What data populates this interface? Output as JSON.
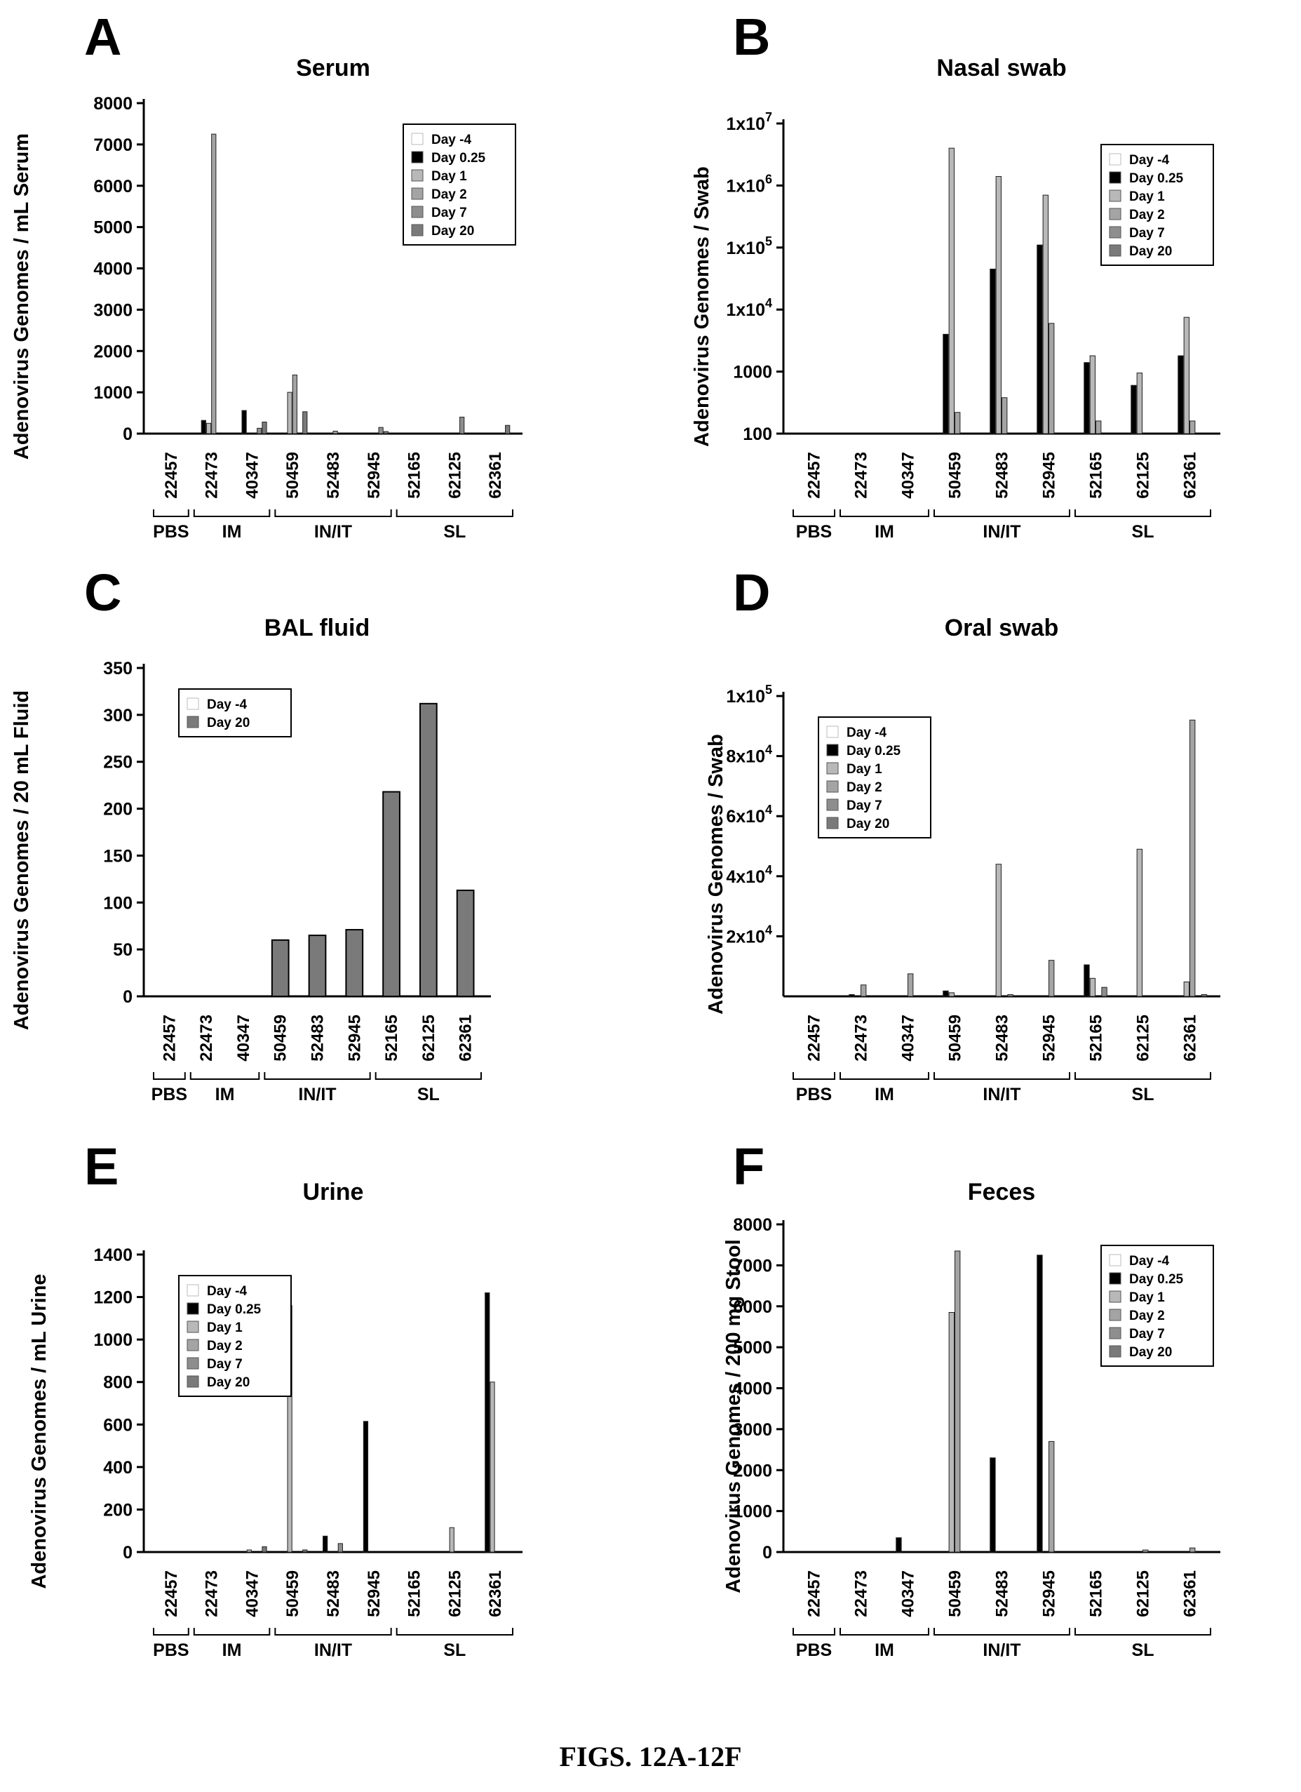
{
  "figure_caption": "FIGS. 12A-12F",
  "colors": {
    "Day -4": "#ffffff",
    "Day 0.25": "#000000",
    "Day 1": "#b8b8b8",
    "Day 2": "#a4a4a4",
    "Day 7": "#8e8e8e",
    "Day 20": "#7a7a7a"
  },
  "chart_data": [
    {
      "panel": "A",
      "type": "bar",
      "title": "Serum",
      "ylabel": "Adenovirus Genomes / mL Serum",
      "yscale": "linear",
      "ylim": [
        0,
        8000
      ],
      "yticks": [
        0,
        1000,
        2000,
        3000,
        4000,
        5000,
        6000,
        7000,
        8000
      ],
      "ytick_labels": [
        "0",
        "1000",
        "2000",
        "3000",
        "4000",
        "5000",
        "6000",
        "7000",
        "8000"
      ],
      "legend": "top-right",
      "categories": [
        "22457",
        "22473",
        "40347",
        "50459",
        "52483",
        "52945",
        "52165",
        "62125",
        "62361"
      ],
      "groups": [
        {
          "label": "PBS",
          "span": [
            0,
            0
          ]
        },
        {
          "label": "IM",
          "span": [
            1,
            2
          ]
        },
        {
          "label": "IN/IT",
          "span": [
            3,
            5
          ]
        },
        {
          "label": "SL",
          "span": [
            6,
            8
          ]
        }
      ],
      "series": [
        {
          "name": "Day -4",
          "values": [
            0,
            0,
            0,
            0,
            0,
            0,
            0,
            0,
            0
          ]
        },
        {
          "name": "Day 0.25",
          "values": [
            0,
            320,
            560,
            0,
            0,
            0,
            0,
            0,
            0
          ]
        },
        {
          "name": "Day 1",
          "values": [
            0,
            250,
            0,
            1000,
            0,
            0,
            0,
            0,
            0
          ]
        },
        {
          "name": "Day 2",
          "values": [
            0,
            7250,
            0,
            1420,
            60,
            0,
            0,
            0,
            0
          ]
        },
        {
          "name": "Day 7",
          "values": [
            0,
            0,
            130,
            0,
            0,
            150,
            0,
            400,
            0
          ]
        },
        {
          "name": "Day 20",
          "values": [
            0,
            0,
            280,
            530,
            0,
            50,
            0,
            0,
            200
          ]
        }
      ]
    },
    {
      "panel": "B",
      "type": "bar",
      "title": "Nasal swab",
      "ylabel": "Adenovirus Genomes / Swab",
      "yscale": "log",
      "ylim": [
        100,
        10000000
      ],
      "yticks": [
        100,
        1000,
        10000,
        100000,
        1000000,
        10000000
      ],
      "ytick_labels": [
        {
          "base": "100"
        },
        {
          "base": "1000"
        },
        {
          "base": "1x10",
          "exp": "4"
        },
        {
          "base": "1x10",
          "exp": "5"
        },
        {
          "base": "1x10",
          "exp": "6"
        },
        {
          "base": "1x10",
          "exp": "7"
        }
      ],
      "legend": "top-right",
      "categories": [
        "22457",
        "22473",
        "40347",
        "50459",
        "52483",
        "52945",
        "52165",
        "62125",
        "62361"
      ],
      "groups": [
        {
          "label": "PBS",
          "span": [
            0,
            0
          ]
        },
        {
          "label": "IM",
          "span": [
            1,
            2
          ]
        },
        {
          "label": "IN/IT",
          "span": [
            3,
            5
          ]
        },
        {
          "label": "SL",
          "span": [
            6,
            8
          ]
        }
      ],
      "series": [
        {
          "name": "Day -4",
          "values": [
            100,
            100,
            100,
            100,
            100,
            100,
            100,
            100,
            100
          ]
        },
        {
          "name": "Day 0.25",
          "values": [
            100,
            100,
            100,
            4000,
            45000,
            110000,
            1400,
            600,
            1800
          ]
        },
        {
          "name": "Day 1",
          "values": [
            100,
            100,
            100,
            4000000,
            1400000,
            700000,
            1800,
            950,
            7500
          ]
        },
        {
          "name": "Day 2",
          "values": [
            100,
            100,
            100,
            220,
            380,
            6000,
            160,
            100,
            160
          ]
        },
        {
          "name": "Day 7",
          "values": [
            100,
            100,
            100,
            100,
            100,
            100,
            100,
            100,
            100
          ]
        },
        {
          "name": "Day 20",
          "values": [
            100,
            100,
            100,
            100,
            100,
            100,
            100,
            100,
            100
          ]
        }
      ]
    },
    {
      "panel": "C",
      "type": "bar",
      "title": "BAL fluid",
      "ylabel": "Adenovirus Genomes / 20 mL Fluid",
      "yscale": "linear",
      "ylim": [
        0,
        350
      ],
      "yticks": [
        0,
        50,
        100,
        150,
        200,
        250,
        300,
        350
      ],
      "ytick_labels": [
        "0",
        "50",
        "100",
        "150",
        "200",
        "250",
        "300",
        "350"
      ],
      "legend": "top-left",
      "categories": [
        "22457",
        "22473",
        "40347",
        "50459",
        "52483",
        "52945",
        "52165",
        "62125",
        "62361"
      ],
      "groups": [
        {
          "label": "PBS",
          "span": [
            0,
            0
          ]
        },
        {
          "label": "IM",
          "span": [
            1,
            2
          ]
        },
        {
          "label": "IN/IT",
          "span": [
            3,
            5
          ]
        },
        {
          "label": "SL",
          "span": [
            6,
            8
          ]
        }
      ],
      "series": [
        {
          "name": "Day -4",
          "values": [
            0,
            0,
            0,
            0,
            0,
            0,
            0,
            0,
            0
          ]
        },
        {
          "name": "Day 20",
          "values": [
            0,
            0,
            0,
            60,
            65,
            71,
            218,
            312,
            113
          ]
        }
      ]
    },
    {
      "panel": "D",
      "type": "bar",
      "title": "Oral swab",
      "ylabel": "Adenovirus Genomes / Swab",
      "yscale": "linear",
      "ylim": [
        0,
        100000
      ],
      "yticks": [
        20000,
        40000,
        60000,
        80000,
        100000
      ],
      "ytick_labels": [
        {
          "base": "2x10",
          "exp": "4"
        },
        {
          "base": "4x10",
          "exp": "4"
        },
        {
          "base": "6x10",
          "exp": "4"
        },
        {
          "base": "8x10",
          "exp": "4"
        },
        {
          "base": "1x10",
          "exp": "5"
        }
      ],
      "legend": "top-left",
      "categories": [
        "22457",
        "22473",
        "40347",
        "50459",
        "52483",
        "52945",
        "52165",
        "62125",
        "62361"
      ],
      "groups": [
        {
          "label": "PBS",
          "span": [
            0,
            0
          ]
        },
        {
          "label": "IM",
          "span": [
            1,
            2
          ]
        },
        {
          "label": "IN/IT",
          "span": [
            3,
            5
          ]
        },
        {
          "label": "SL",
          "span": [
            6,
            8
          ]
        }
      ],
      "series": [
        {
          "name": "Day -4",
          "values": [
            0,
            0,
            0,
            0,
            0,
            0,
            0,
            0,
            0
          ]
        },
        {
          "name": "Day 0.25",
          "values": [
            0,
            600,
            0,
            1800,
            0,
            0,
            10500,
            0,
            0
          ]
        },
        {
          "name": "Day 1",
          "values": [
            0,
            0,
            0,
            1200,
            44000,
            0,
            6000,
            49000,
            4800
          ]
        },
        {
          "name": "Day 2",
          "values": [
            0,
            3800,
            7500,
            0,
            0,
            12000,
            0,
            0,
            92000
          ]
        },
        {
          "name": "Day 7",
          "values": [
            0,
            0,
            0,
            0,
            600,
            0,
            3000,
            0,
            0
          ]
        },
        {
          "name": "Day 20",
          "values": [
            0,
            0,
            0,
            0,
            0,
            0,
            0,
            0,
            600
          ]
        }
      ]
    },
    {
      "panel": "E",
      "type": "bar",
      "title": "Urine",
      "ylabel": "Adenovirus Genomes / mL Urine",
      "yscale": "linear",
      "ylim": [
        0,
        1400
      ],
      "yticks": [
        0,
        200,
        400,
        600,
        800,
        1000,
        1200,
        1400
      ],
      "ytick_labels": [
        "0",
        "200",
        "400",
        "600",
        "800",
        "1000",
        "1200",
        "1400"
      ],
      "legend": "top-left",
      "categories": [
        "22457",
        "22473",
        "40347",
        "50459",
        "52483",
        "52945",
        "52165",
        "62125",
        "62361"
      ],
      "groups": [
        {
          "label": "PBS",
          "span": [
            0,
            0
          ]
        },
        {
          "label": "IM",
          "span": [
            1,
            2
          ]
        },
        {
          "label": "IN/IT",
          "span": [
            3,
            5
          ]
        },
        {
          "label": "SL",
          "span": [
            6,
            8
          ]
        }
      ],
      "series": [
        {
          "name": "Day -4",
          "values": [
            0,
            0,
            0,
            0,
            0,
            0,
            0,
            0,
            0
          ]
        },
        {
          "name": "Day 0.25",
          "values": [
            0,
            0,
            0,
            0,
            75,
            615,
            0,
            0,
            1220
          ]
        },
        {
          "name": "Day 1",
          "values": [
            0,
            0,
            10,
            1160,
            0,
            0,
            0,
            115,
            800
          ]
        },
        {
          "name": "Day 2",
          "values": [
            0,
            0,
            0,
            0,
            0,
            0,
            0,
            0,
            0
          ]
        },
        {
          "name": "Day 7",
          "values": [
            0,
            0,
            0,
            0,
            40,
            0,
            0,
            0,
            0
          ]
        },
        {
          "name": "Day 20",
          "values": [
            0,
            0,
            25,
            10,
            0,
            0,
            0,
            0,
            0
          ]
        }
      ]
    },
    {
      "panel": "F",
      "type": "bar",
      "title": "Feces",
      "ylabel": "Adenovirus Genomes / 200 mg Stool",
      "yscale": "linear",
      "ylim": [
        0,
        8000
      ],
      "yticks": [
        0,
        1000,
        2000,
        3000,
        4000,
        5000,
        6000,
        7000,
        8000
      ],
      "ytick_labels": [
        "0",
        "1000",
        "2000",
        "3000",
        "4000",
        "5000",
        "6000",
        "7000",
        "8000"
      ],
      "legend": "top-right",
      "categories": [
        "22457",
        "22473",
        "40347",
        "50459",
        "52483",
        "52945",
        "52165",
        "62125",
        "62361"
      ],
      "groups": [
        {
          "label": "PBS",
          "span": [
            0,
            0
          ]
        },
        {
          "label": "IM",
          "span": [
            1,
            2
          ]
        },
        {
          "label": "IN/IT",
          "span": [
            3,
            5
          ]
        },
        {
          "label": "SL",
          "span": [
            6,
            8
          ]
        }
      ],
      "series": [
        {
          "name": "Day -4",
          "values": [
            0,
            0,
            0,
            0,
            0,
            0,
            0,
            0,
            0
          ]
        },
        {
          "name": "Day 0.25",
          "values": [
            0,
            0,
            350,
            0,
            2300,
            7250,
            0,
            0,
            0
          ]
        },
        {
          "name": "Day 1",
          "values": [
            0,
            0,
            0,
            5850,
            0,
            0,
            0,
            0,
            0
          ]
        },
        {
          "name": "Day 2",
          "values": [
            0,
            0,
            0,
            7350,
            0,
            2700,
            0,
            50,
            100
          ]
        },
        {
          "name": "Day 7",
          "values": [
            0,
            0,
            0,
            0,
            0,
            0,
            0,
            0,
            0
          ]
        },
        {
          "name": "Day 20",
          "values": [
            0,
            0,
            0,
            0,
            0,
            0,
            0,
            0,
            0
          ]
        }
      ]
    }
  ]
}
